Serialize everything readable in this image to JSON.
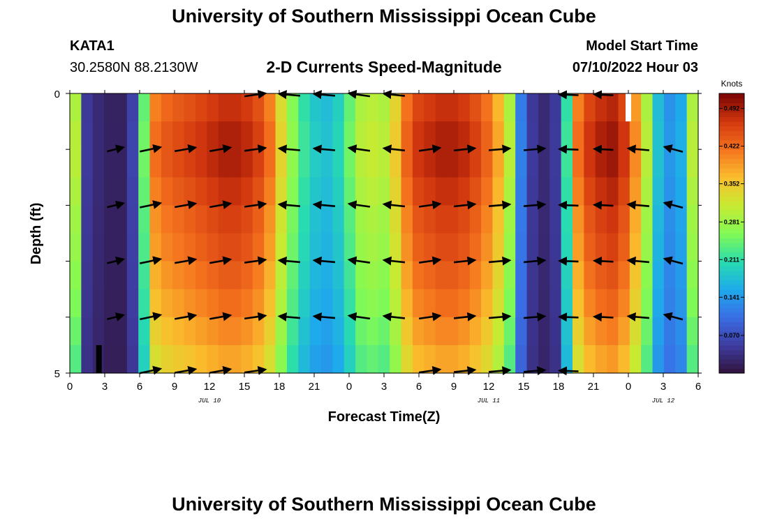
{
  "header": {
    "title": "University of Southern Mississippi Ocean Cube",
    "station_id": "KATA1",
    "coords": "30.2580N  88.2130W",
    "panel_title": "2-D Currents Speed-Magnitude",
    "start_label": "Model Start Time",
    "start_value": "07/10/2022 Hour 03"
  },
  "footer": {
    "title": "University of Southern Mississippi Ocean Cube"
  },
  "chart_data": {
    "type": "heatmap",
    "title": "2-D Currents Speed-Magnitude",
    "xlabel": "Forecast Time(Z)",
    "ylabel": "Depth (ft)",
    "x_hours": [
      0,
      54
    ],
    "y_range_ft": [
      0,
      5
    ],
    "x_tick_labels": [
      "0",
      "3",
      "6",
      "9",
      "12",
      "15",
      "18",
      "21",
      "0",
      "3",
      "6",
      "9",
      "12",
      "15",
      "18",
      "21",
      "0",
      "3",
      "6"
    ],
    "y_tick_labels": [
      "0",
      "5"
    ],
    "date_labels": [
      {
        "text": "JUL 10",
        "hour": 12
      },
      {
        "text": "JUL 11",
        "hour": 36
      },
      {
        "text": "JUL 12",
        "hour": 51
      }
    ],
    "colorbar": {
      "unit": "Knots",
      "range": [
        0.0,
        0.52
      ],
      "ticks": [
        "0.070",
        "0.141",
        "0.211",
        "0.281",
        "0.352",
        "0.422",
        "0.492"
      ],
      "tick_values": [
        0.07,
        0.141,
        0.211,
        0.281,
        0.352,
        0.422,
        0.492
      ]
    },
    "speed_profile_knots": [
      0.3,
      0.05,
      0.03,
      0.02,
      0.02,
      0.06,
      0.25,
      0.42,
      0.44,
      0.45,
      0.46,
      0.47,
      0.48,
      0.49,
      0.49,
      0.48,
      0.46,
      0.42,
      0.34,
      0.27,
      0.22,
      0.19,
      0.18,
      0.2,
      0.25,
      0.3,
      0.31,
      0.3,
      0.35,
      0.43,
      0.47,
      0.48,
      0.49,
      0.49,
      0.48,
      0.46,
      0.43,
      0.38,
      0.3,
      0.12,
      0.05,
      0.03,
      0.05,
      0.22,
      0.42,
      0.47,
      0.49,
      0.5,
      0.47,
      0.4,
      0.3,
      0.18,
      0.14,
      0.16,
      0.3
    ],
    "depth_factor": [
      0.97,
      1.0,
      1.0,
      0.97,
      0.94,
      0.92,
      0.89,
      0.86,
      0.82,
      0.78
    ],
    "vectors": {
      "hours": [
        3,
        6,
        9,
        12,
        15,
        18,
        21,
        24,
        27,
        30,
        33,
        36,
        39,
        42,
        45,
        48,
        51
      ],
      "depths_ft": [
        0,
        1,
        2,
        3,
        4,
        5
      ],
      "angle_deg": [
        14,
        12,
        10,
        10,
        8,
        -5,
        -5,
        -8,
        -6,
        8,
        6,
        5,
        5,
        -2,
        -3,
        -5,
        -15
      ],
      "length_scale": [
        0.8,
        1.0,
        1.0,
        1.0,
        1.0,
        1.0,
        1.0,
        1.0,
        1.0,
        1.0,
        1.0,
        1.0,
        1.0,
        0.9,
        0.9,
        1.0,
        0.9
      ],
      "surface_present": [
        false,
        false,
        false,
        false,
        true,
        true,
        true,
        true,
        true,
        false,
        false,
        false,
        false,
        true,
        true,
        false,
        false
      ],
      "bottom_present": [
        false,
        true,
        true,
        true,
        true,
        false,
        false,
        false,
        false,
        true,
        true,
        true,
        true,
        true,
        false,
        false,
        false
      ]
    },
    "markers": [
      {
        "hour": 2.5,
        "depth_top_ft": 4.5,
        "depth_bottom_ft": 5.0,
        "color": "#000000"
      },
      {
        "hour": 48.0,
        "depth_top_ft": 0.0,
        "depth_bottom_ft": 0.5,
        "color": "#ffffff"
      }
    ]
  }
}
